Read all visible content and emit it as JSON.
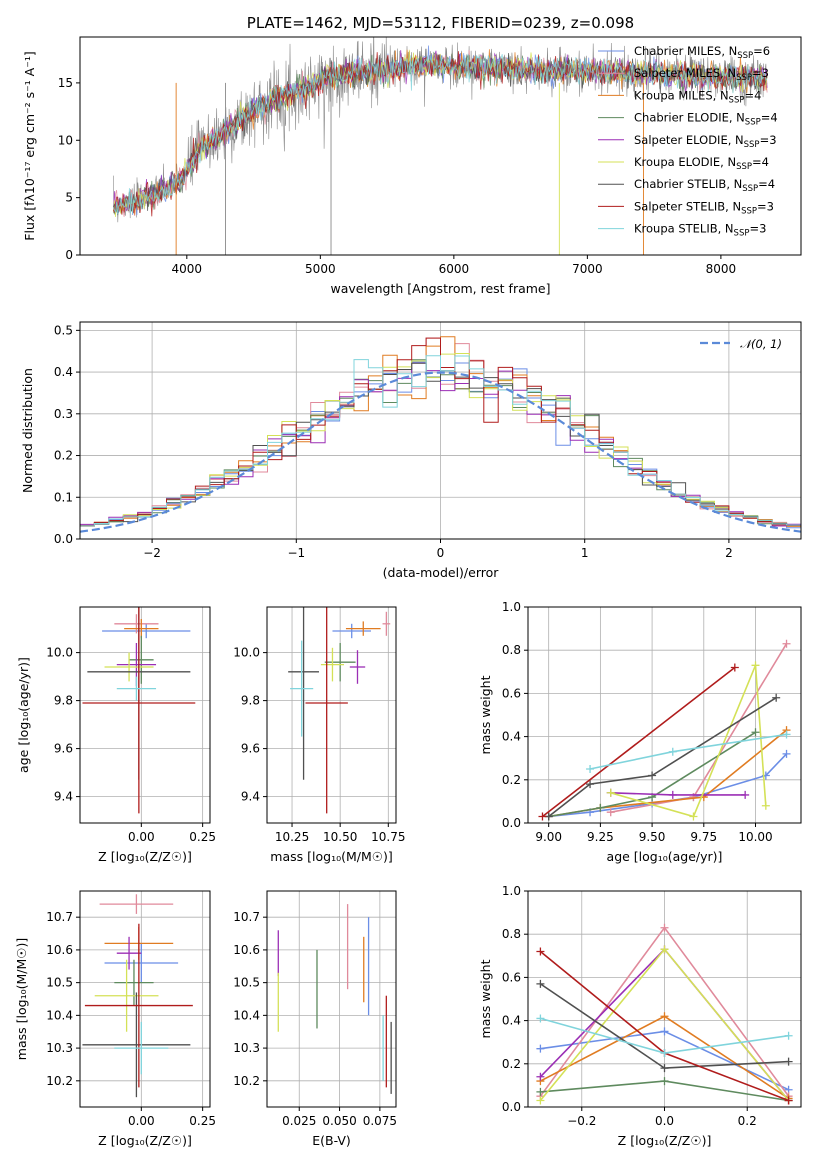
{
  "colors": {
    "chabrier_miles": "#6b8ee6",
    "salpeter_miles": "#e08a9b",
    "kroupa_miles": "#e07c22",
    "chabrier_elodie": "#5e8a5e",
    "salpeter_elodie": "#9b2fb5",
    "kroupa_elodie": "#d4e157",
    "chabrier_stelib": "#505050",
    "salpeter_stelib": "#b01c1c",
    "kroupa_stelib": "#80d4dc"
  },
  "chart_data": [
    {
      "id": "spectrum",
      "type": "line",
      "title": "PLATE=1462, MJD=53112, FIBERID=0239, z=0.098",
      "xlabel": "wavelength [Angstrom, rest frame]",
      "ylabel": "Flux [fλ10⁻¹⁷ erg cm⁻² s⁻¹ A⁻¹]",
      "xlim": [
        3200,
        8600
      ],
      "ylim": [
        0,
        19
      ],
      "xticks": [
        "4000",
        "5000",
        "6000",
        "7000",
        "8000"
      ],
      "yticks": [
        "0",
        "5",
        "10",
        "15"
      ],
      "continuum": {
        "x": [
          3450,
          3600,
          3800,
          3950,
          4100,
          4300,
          4500,
          4700,
          4900,
          5100,
          5300,
          5500,
          5800,
          6100,
          6500,
          7000,
          7500,
          8000,
          8350
        ],
        "y": [
          4.2,
          4.6,
          5.5,
          6.4,
          9.3,
          10.8,
          12.6,
          13.8,
          14.6,
          15.6,
          15.9,
          16.2,
          16.6,
          16.4,
          16.2,
          16.0,
          15.8,
          15.5,
          15.3
        ]
      },
      "legend_position": "upper-right",
      "legend": [
        {
          "label": "Chabrier MILES, N",
          "sub": "SSP",
          "suffix": "=6",
          "color": "#6b8ee6"
        },
        {
          "label": "Salpeter MILES, N",
          "sub": "SSP",
          "suffix": "=3",
          "color": "#e08a9b"
        },
        {
          "label": "Kroupa MILES, N",
          "sub": "SSP",
          "suffix": "=4",
          "color": "#e07c22"
        },
        {
          "label": "Chabrier ELODIE, N",
          "sub": "SSP",
          "suffix": "=4",
          "color": "#5e8a5e"
        },
        {
          "label": "Salpeter ELODIE, N",
          "sub": "SSP",
          "suffix": "=3",
          "color": "#9b2fb5"
        },
        {
          "label": "Kroupa ELODIE, N",
          "sub": "SSP",
          "suffix": "=4",
          "color": "#d4e157"
        },
        {
          "label": "Chabrier STELIB, N",
          "sub": "SSP",
          "suffix": "=4",
          "color": "#505050"
        },
        {
          "label": "Salpeter STELIB, N",
          "sub": "SSP",
          "suffix": "=3",
          "color": "#b01c1c"
        },
        {
          "label": "Kroupa STELIB, N",
          "sub": "SSP",
          "suffix": "=3",
          "color": "#80d4dc"
        }
      ]
    },
    {
      "id": "residuals",
      "type": "line",
      "xlabel": "(data-model)/error",
      "ylabel": "Normed distribution",
      "xlim": [
        -2.5,
        2.5
      ],
      "ylim": [
        0,
        0.52
      ],
      "xticks": [
        "−2",
        "−1",
        "0",
        "1",
        "2"
      ],
      "yticks": [
        "0.0",
        "0.1",
        "0.2",
        "0.3",
        "0.4",
        "0.5"
      ],
      "legend": "𝒩(0, 1)",
      "legend_position": "upper-right",
      "reference": "normal(0,1)"
    },
    {
      "id": "age-vs-Z",
      "type": "scatter",
      "xlabel": "Z [log₁₀(Z/Z☉)]",
      "ylabel": "age  [log₁₀(age/yr)]",
      "xlim": [
        -0.25,
        0.28
      ],
      "ylim": [
        9.29,
        10.19
      ],
      "xticks": [
        "0.00",
        "0.25"
      ],
      "yticks": [
        "9.4",
        "9.6",
        "9.8",
        "10.0"
      ],
      "points": [
        {
          "x": 0.02,
          "y": 10.09,
          "xerr": 0.18,
          "yerr": 0.03,
          "color": "#6b8ee6"
        },
        {
          "x": -0.02,
          "y": 10.12,
          "xerr": 0.09,
          "yerr": 0.04,
          "color": "#e08a9b"
        },
        {
          "x": 0.0,
          "y": 10.1,
          "xerr": 0.07,
          "yerr": 0.04,
          "color": "#e07c22"
        },
        {
          "x": 0.0,
          "y": 9.97,
          "xerr": 0.05,
          "yerr": 0.1,
          "color": "#5e8a5e"
        },
        {
          "x": -0.02,
          "y": 9.95,
          "xerr": 0.08,
          "yerr": 0.09,
          "color": "#9b2fb5"
        },
        {
          "x": -0.05,
          "y": 9.94,
          "xerr": 0.1,
          "yerr": 0.06,
          "color": "#d4e157"
        },
        {
          "x": -0.01,
          "y": 9.92,
          "xerr": 0.21,
          "yerr": 0.45,
          "color": "#505050"
        },
        {
          "x": -0.01,
          "y": 9.79,
          "xerr": 0.23,
          "yerr": 0.46,
          "color": "#b01c1c"
        },
        {
          "x": -0.02,
          "y": 9.85,
          "xerr": 0.08,
          "yerr": 0.05,
          "color": "#80d4dc"
        }
      ]
    },
    {
      "id": "age-vs-mass",
      "type": "scatter",
      "xlabel": "mass [log₁₀(M/M☉)]",
      "xlim": [
        10.12,
        10.79
      ],
      "ylim": [
        9.29,
        10.19
      ],
      "xticks": [
        "10.25",
        "10.50",
        "10.75"
      ],
      "yticks": [
        "9.4",
        "9.6",
        "9.8",
        "10.0"
      ],
      "points": [
        {
          "x": 10.56,
          "y": 10.09,
          "xerr": 0.1,
          "yerr": 0.03,
          "color": "#6b8ee6"
        },
        {
          "x": 10.74,
          "y": 10.12,
          "xerr": 0.02,
          "yerr": 0.05,
          "color": "#e08a9b"
        },
        {
          "x": 10.62,
          "y": 10.1,
          "xerr": 0.09,
          "yerr": 0.03,
          "color": "#e07c22"
        },
        {
          "x": 10.5,
          "y": 9.96,
          "xerr": 0.08,
          "yerr": 0.08,
          "color": "#5e8a5e"
        },
        {
          "x": 10.59,
          "y": 9.94,
          "xerr": 0.04,
          "yerr": 0.07,
          "color": "#9b2fb5"
        },
        {
          "x": 10.46,
          "y": 9.95,
          "xerr": 0.06,
          "yerr": 0.07,
          "color": "#d4e157"
        },
        {
          "x": 10.31,
          "y": 9.92,
          "xerr": 0.08,
          "yerr": 0.45,
          "color": "#505050"
        },
        {
          "x": 10.43,
          "y": 9.79,
          "xerr": 0.11,
          "yerr": 0.46,
          "color": "#b01c1c"
        },
        {
          "x": 10.3,
          "y": 9.85,
          "xerr": 0.06,
          "yerr": 0.2,
          "color": "#80d4dc"
        }
      ]
    },
    {
      "id": "mass-weight-vs-age",
      "type": "line",
      "xlabel": "age  [log₁₀(age/yr)]",
      "ylabel": "mass weight",
      "xlim": [
        8.9,
        10.22
      ],
      "ylim": [
        0,
        1
      ],
      "xticks": [
        "9.00",
        "9.25",
        "9.50",
        "9.75",
        "10.00"
      ],
      "yticks": [
        "0.0",
        "0.2",
        "0.4",
        "0.6",
        "0.8",
        "1.0"
      ],
      "series": [
        {
          "color": "#6b8ee6",
          "x": [
            9.0,
            9.2,
            9.5,
            9.7,
            10.05,
            10.15
          ],
          "y": [
            0.03,
            0.05,
            0.09,
            0.12,
            0.22,
            0.32
          ]
        },
        {
          "color": "#e08a9b",
          "x": [
            9.3,
            9.7,
            10.15
          ],
          "y": [
            0.05,
            0.12,
            0.83
          ]
        },
        {
          "color": "#e07c22",
          "x": [
            9.0,
            9.25,
            9.75,
            10.15
          ],
          "y": [
            0.03,
            0.07,
            0.12,
            0.43
          ]
        },
        {
          "color": "#5e8a5e",
          "x": [
            9.0,
            9.25,
            9.5,
            10.0
          ],
          "y": [
            0.03,
            0.07,
            0.12,
            0.42
          ]
        },
        {
          "color": "#9b2fb5",
          "x": [
            9.3,
            9.6,
            9.95
          ],
          "y": [
            0.14,
            0.13,
            0.13
          ]
        },
        {
          "color": "#d4e157",
          "x": [
            9.3,
            9.7,
            10.0,
            10.05
          ],
          "y": [
            0.14,
            0.03,
            0.73,
            0.08
          ]
        },
        {
          "color": "#505050",
          "x": [
            9.0,
            9.2,
            9.5,
            10.1
          ],
          "y": [
            0.03,
            0.18,
            0.22,
            0.58
          ]
        },
        {
          "color": "#b01c1c",
          "x": [
            8.97,
            9.9
          ],
          "y": [
            0.03,
            0.72
          ]
        },
        {
          "color": "#80d4dc",
          "x": [
            9.2,
            9.6,
            10.15
          ],
          "y": [
            0.25,
            0.33,
            0.41
          ]
        }
      ]
    },
    {
      "id": "mass-vs-Z",
      "type": "scatter",
      "xlabel": "Z [log₁₀(Z/Z☉)]",
      "ylabel": "mass [log₁₀(M/M☉)]",
      "xlim": [
        -0.25,
        0.28
      ],
      "ylim": [
        10.12,
        10.78
      ],
      "xticks": [
        "0.00",
        "0.25"
      ],
      "yticks": [
        "10.2",
        "10.3",
        "10.4",
        "10.5",
        "10.6",
        "10.7"
      ],
      "points": [
        {
          "x": 0.0,
          "y": 10.56,
          "xerr": 0.15,
          "yerr": 0.06,
          "color": "#6b8ee6"
        },
        {
          "x": -0.02,
          "y": 10.74,
          "xerr": 0.15,
          "yerr": 0.03,
          "color": "#e08a9b"
        },
        {
          "x": -0.01,
          "y": 10.62,
          "xerr": 0.14,
          "yerr": 0.05,
          "color": "#e07c22"
        },
        {
          "x": -0.03,
          "y": 10.5,
          "xerr": 0.08,
          "yerr": 0.07,
          "color": "#5e8a5e"
        },
        {
          "x": -0.05,
          "y": 10.59,
          "xerr": 0.05,
          "yerr": 0.05,
          "color": "#9b2fb5"
        },
        {
          "x": -0.06,
          "y": 10.46,
          "xerr": 0.13,
          "yerr": 0.11,
          "color": "#d4e157"
        },
        {
          "x": -0.02,
          "y": 10.31,
          "xerr": 0.22,
          "yerr": 0.16,
          "color": "#505050"
        },
        {
          "x": -0.01,
          "y": 10.43,
          "xerr": 0.22,
          "yerr": 0.25,
          "color": "#b01c1c"
        },
        {
          "x": 0.0,
          "y": 10.3,
          "xerr": 0.11,
          "yerr": 0.08,
          "color": "#80d4dc"
        }
      ]
    },
    {
      "id": "mass-vs-EBV",
      "type": "scatter",
      "xlabel": "E(B-V)",
      "xlim": [
        0.005,
        0.085
      ],
      "ylim": [
        10.12,
        10.78
      ],
      "xticks": [
        "0.025",
        "0.050",
        "0.075"
      ],
      "yticks": [
        "10.2",
        "10.3",
        "10.4",
        "10.5",
        "10.6",
        "10.7"
      ],
      "points": [
        {
          "x": 0.012,
          "y": 10.59,
          "yerr": 0.07,
          "color": "#9b2fb5"
        },
        {
          "x": 0.012,
          "y": 10.44,
          "yerr": 0.09,
          "color": "#d4e157"
        },
        {
          "x": 0.036,
          "y": 10.48,
          "yerr": 0.12,
          "color": "#5e8a5e"
        },
        {
          "x": 0.055,
          "y": 10.61,
          "yerr": 0.13,
          "color": "#e08a9b"
        },
        {
          "x": 0.065,
          "y": 10.54,
          "yerr": 0.1,
          "color": "#e07c22"
        },
        {
          "x": 0.068,
          "y": 10.55,
          "yerr": 0.15,
          "color": "#6b8ee6"
        },
        {
          "x": 0.077,
          "y": 10.3,
          "yerr": 0.1,
          "color": "#80d4dc"
        },
        {
          "x": 0.079,
          "y": 10.32,
          "yerr": 0.14,
          "color": "#b01c1c"
        },
        {
          "x": 0.082,
          "y": 10.27,
          "yerr": 0.11,
          "color": "#505050"
        }
      ]
    },
    {
      "id": "mass-weight-vs-Z",
      "type": "line",
      "xlabel": "Z [log₁₀(Z/Z☉)]",
      "ylabel": "mass weight",
      "xlim": [
        -0.33,
        0.33
      ],
      "ylim": [
        0,
        1
      ],
      "xticks": [
        "−0.2",
        "0.0",
        "0.2"
      ],
      "yticks": [
        "0.0",
        "0.2",
        "0.4",
        "0.6",
        "0.8",
        "1.0"
      ],
      "series": [
        {
          "color": "#6b8ee6",
          "x": [
            -0.3,
            0.0,
            0.3
          ],
          "y": [
            0.27,
            0.35,
            0.08
          ]
        },
        {
          "color": "#e08a9b",
          "x": [
            -0.3,
            0.0,
            0.3
          ],
          "y": [
            0.05,
            0.83,
            0.05
          ]
        },
        {
          "color": "#e07c22",
          "x": [
            -0.3,
            0.0,
            0.3
          ],
          "y": [
            0.12,
            0.42,
            0.04
          ]
        },
        {
          "color": "#5e8a5e",
          "x": [
            -0.3,
            0.0,
            0.3
          ],
          "y": [
            0.07,
            0.12,
            0.03
          ]
        },
        {
          "color": "#9b2fb5",
          "x": [
            -0.3,
            0.0,
            0.3
          ],
          "y": [
            0.14,
            0.73,
            0.03
          ]
        },
        {
          "color": "#d4e157",
          "x": [
            -0.3,
            0.0,
            0.3
          ],
          "y": [
            0.03,
            0.73,
            0.03
          ]
        },
        {
          "color": "#505050",
          "x": [
            -0.3,
            0.0,
            0.3
          ],
          "y": [
            0.57,
            0.18,
            0.21
          ]
        },
        {
          "color": "#b01c1c",
          "x": [
            -0.3,
            0.0,
            0.3
          ],
          "y": [
            0.72,
            0.25,
            0.03
          ]
        },
        {
          "color": "#80d4dc",
          "x": [
            -0.3,
            0.0,
            0.3
          ],
          "y": [
            0.41,
            0.25,
            0.33
          ]
        }
      ]
    }
  ]
}
